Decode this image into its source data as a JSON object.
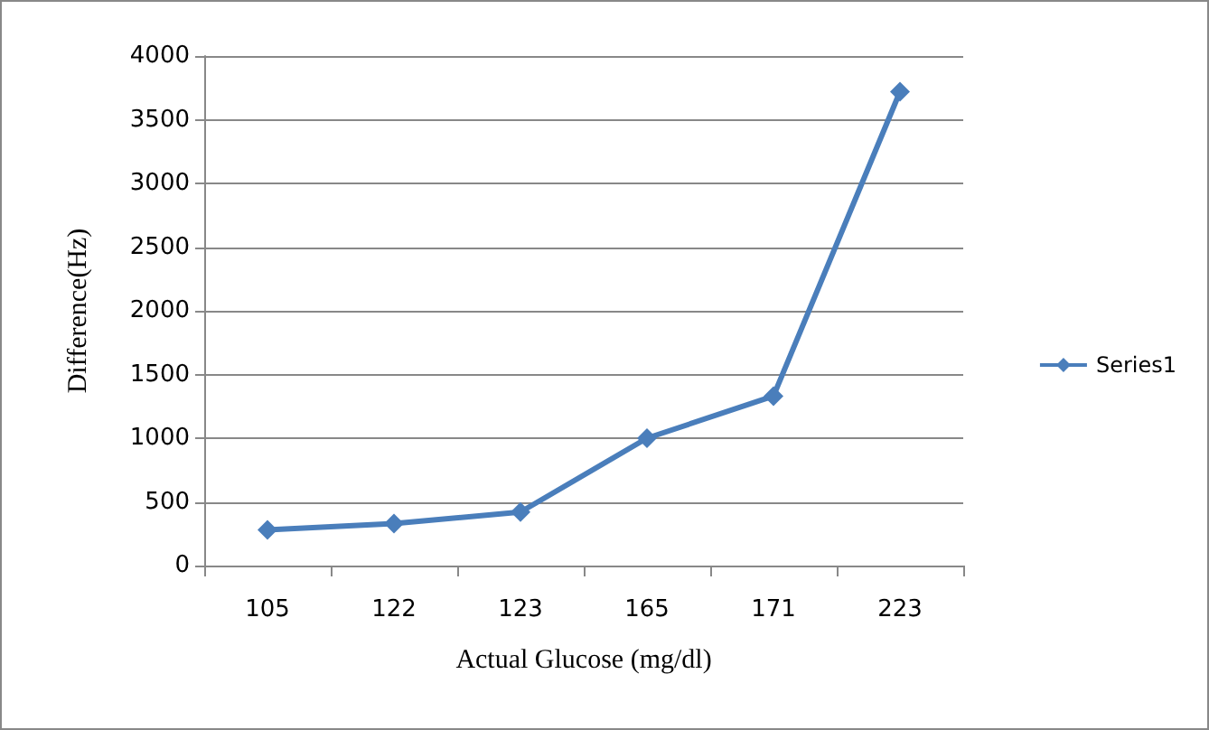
{
  "chart_data": {
    "type": "line",
    "xlabel": "Actual Glucose (mg/dl)",
    "ylabel": "Difference(Hz)",
    "categories": [
      "105",
      "122",
      "123",
      "165",
      "171",
      "223"
    ],
    "series": [
      {
        "name": "Series1",
        "color": "#4a7ebb",
        "values": [
          280,
          330,
          420,
          1000,
          1330,
          3720
        ]
      }
    ],
    "ylim": [
      0,
      4000
    ],
    "yticks": [
      0,
      500,
      1000,
      1500,
      2000,
      2500,
      3000,
      3500,
      4000
    ],
    "grid": "y",
    "legend": "right",
    "marker": "diamond",
    "line_style": "solid"
  }
}
